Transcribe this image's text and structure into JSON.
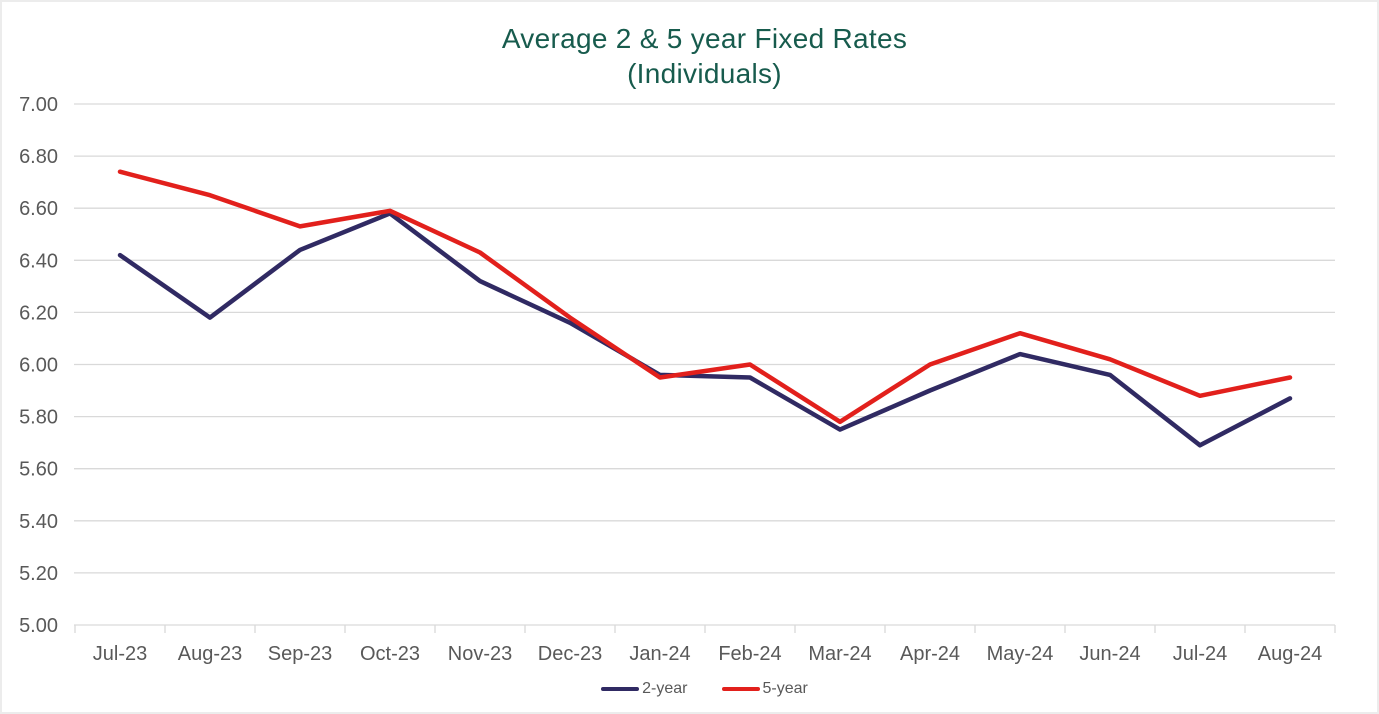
{
  "title": {
    "line1": "Average 2 & 5 year Fixed Rates",
    "line2": "(Individuals)",
    "color": "#175b4d"
  },
  "axis": {
    "y_ticks": [
      "7.00",
      "6.80",
      "6.60",
      "6.40",
      "6.20",
      "6.00",
      "5.80",
      "5.60",
      "5.40",
      "5.20",
      "5.00"
    ],
    "label_color": "#595959",
    "grid_color": "#d9d9d9"
  },
  "chart_data": {
    "type": "line",
    "title": "Average 2 & 5 year Fixed Rates (Individuals)",
    "categories": [
      "Jul-23",
      "Aug-23",
      "Sep-23",
      "Oct-23",
      "Nov-23",
      "Dec-23",
      "Jan-24",
      "Feb-24",
      "Mar-24",
      "Apr-24",
      "May-24",
      "Jun-24",
      "Jul-24",
      "Aug-24"
    ],
    "series": [
      {
        "name": "2-year",
        "color": "#302a63",
        "values": [
          6.42,
          6.18,
          6.44,
          6.58,
          6.32,
          6.16,
          5.96,
          5.95,
          5.75,
          5.9,
          6.04,
          5.96,
          5.69,
          5.87
        ]
      },
      {
        "name": "5-year",
        "color": "#e2201c",
        "values": [
          6.74,
          6.65,
          6.53,
          6.59,
          6.43,
          6.18,
          5.95,
          6.0,
          5.78,
          6.0,
          6.12,
          6.02,
          5.88,
          5.95
        ]
      }
    ],
    "ylim": [
      5.0,
      7.0
    ],
    "ytick_step": 0.2,
    "grid": true,
    "legend_position": "bottom"
  }
}
